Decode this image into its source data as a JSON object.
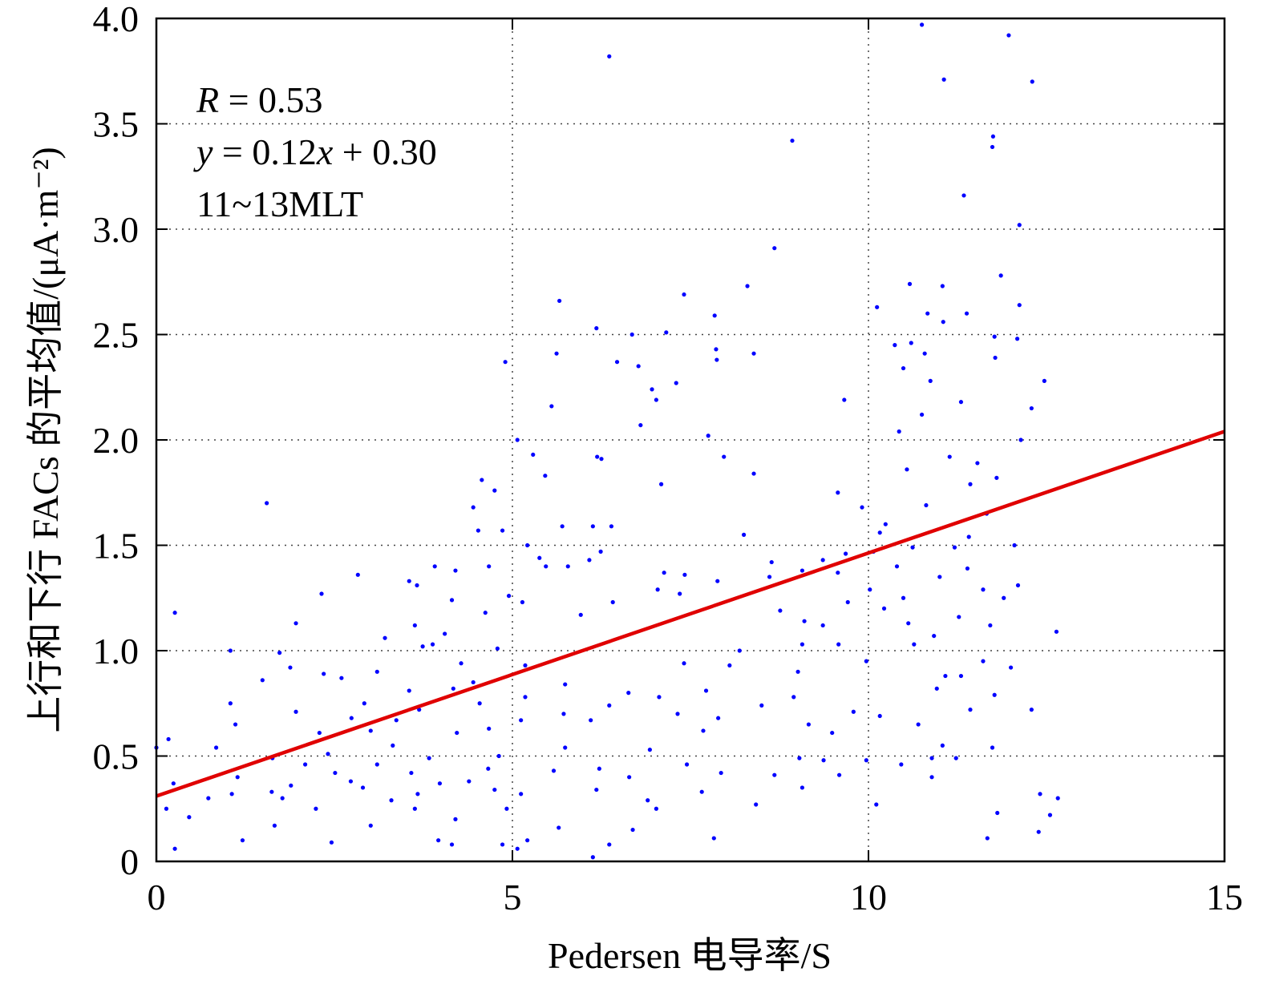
{
  "chart_data": {
    "type": "scatter",
    "xlabel": "Pedersen 电导率/S",
    "ylabel": "上行和下行 FACs 的平均值/(μA·m⁻²)",
    "annotations": [
      [
        {
          "text": "R",
          "italic": true
        },
        {
          "text": " = 0.53",
          "italic": false
        }
      ],
      [
        {
          "text": "y",
          "italic": true
        },
        {
          "text": " = 0.12",
          "italic": false
        },
        {
          "text": "x",
          "italic": true
        },
        {
          "text": " + 0.30",
          "italic": false
        }
      ],
      [
        {
          "text": "11~13MLT",
          "italic": false
        }
      ]
    ],
    "color": "#0000ff",
    "x": [
      10.75,
      11.97,
      6.36,
      11.06,
      12.3,
      11.75,
      11.74,
      8.93,
      11.34,
      12.12,
      8.68,
      11.86,
      8.3,
      10.58,
      11.04,
      5.66,
      12.12,
      10.12,
      7.41,
      7.84,
      10.83,
      11.38,
      6.18,
      7.16,
      6.68,
      11.05,
      12.09,
      10.6,
      10.37,
      11.77,
      5.62,
      8.39,
      10.79,
      7.86,
      4.9,
      6.47,
      6.77,
      10.49,
      11.78,
      10.87,
      12.47,
      6.96,
      7.3,
      7.87,
      9.66,
      7.02,
      5.55,
      11.3,
      12.29,
      10.43,
      10.75,
      7.75,
      12.14,
      6.8,
      5.07,
      6.19,
      6.25,
      5.29,
      7.97,
      10.54,
      11.14,
      11.53,
      4.57,
      5.46,
      7.09,
      8.39,
      9.57,
      11.43,
      11.8,
      4.75,
      1.55,
      9.91,
      10.81,
      4.45,
      11.66,
      10.24,
      5.7,
      6.13,
      6.39,
      4.52,
      4.86,
      8.25,
      10.16,
      11.41,
      5.21,
      10.62,
      12.05,
      6.24,
      9.68,
      10.07,
      11.21,
      5.38,
      6.08,
      8.64,
      9.36,
      3.91,
      4.67,
      5.47,
      5.78,
      10.4,
      11.39,
      2.83,
      4.2,
      7.13,
      7.42,
      9.57,
      8.61,
      3.55,
      3.66,
      7.04,
      7.88,
      11.0,
      12.1,
      11.61,
      2.32,
      7.35,
      10.02,
      9.07,
      4.95,
      4.15,
      5.14,
      6.41,
      10.49,
      11.9,
      9.71,
      10.22,
      0.26,
      4.62,
      5.96,
      8.76,
      9.1,
      9.36,
      1.96,
      3.63,
      10.56,
      11.27,
      12.64,
      4.05,
      10.92,
      11.71,
      3.21,
      9.07,
      10.64,
      1.04,
      1.73,
      3.74,
      3.88,
      4.79,
      8.19,
      9.58,
      9.97,
      11.61,
      4.28,
      5.18,
      7.41,
      8.05,
      1.88,
      3.1,
      9.01,
      12.0,
      2.35,
      11.08,
      11.3,
      1.49,
      2.6,
      4.45,
      5.74,
      6.63,
      7.72,
      10.96,
      3.55,
      4.17,
      5.18,
      7.06,
      8.95,
      11.77,
      1.04,
      2.92,
      4.54,
      6.36,
      8.5,
      11.43,
      12.29,
      1.96,
      3.69,
      7.32,
      5.72,
      9.79,
      2.74,
      3.37,
      5.12,
      7.89,
      10.16,
      1.11,
      6.1,
      9.16,
      10.7,
      4.67,
      2.29,
      3.01,
      4.22,
      7.68,
      9.49,
      3.32,
      5.74,
      6.93,
      11.74,
      11.04,
      0.0,
      0.17,
      0.84,
      1.63,
      2.41,
      3.83,
      4.81,
      9.03,
      9.97,
      10.89,
      11.23,
      2.09,
      3.1,
      6.22,
      7.45,
      9.37,
      10.46,
      2.51,
      3.58,
      4.66,
      5.58,
      7.93,
      8.68,
      10.89,
      1.14,
      2.73,
      3.98,
      4.39,
      6.64,
      9.59,
      0.24,
      1.89,
      2.9,
      4.75,
      6.18,
      7.66,
      9.07,
      1.06,
      1.62,
      3.67,
      5.12,
      12.41,
      12.66,
      0.73,
      1.77,
      3.3,
      6.9,
      8.42,
      0.14,
      2.24,
      3.63,
      4.92,
      7.02,
      10.11,
      0.46,
      12.55,
      11.81,
      4.2,
      3.01,
      1.66,
      5.65,
      6.69,
      12.39,
      1.21,
      2.46,
      3.96,
      5.21,
      7.83,
      11.67,
      0.26,
      4.15,
      4.86,
      6.36,
      5.07,
      6.13
    ],
    "values": [
      3.97,
      3.92,
      3.82,
      3.71,
      3.7,
      3.44,
      3.39,
      3.42,
      3.16,
      3.02,
      2.91,
      2.78,
      2.73,
      2.74,
      2.73,
      2.66,
      2.64,
      2.63,
      2.69,
      2.59,
      2.6,
      2.6,
      2.53,
      2.51,
      2.5,
      2.56,
      2.48,
      2.46,
      2.45,
      2.49,
      2.41,
      2.41,
      2.41,
      2.43,
      2.37,
      2.37,
      2.35,
      2.34,
      2.39,
      2.28,
      2.28,
      2.24,
      2.27,
      2.38,
      2.19,
      2.19,
      2.16,
      2.18,
      2.15,
      2.04,
      2.12,
      2.02,
      2.0,
      2.07,
      2.0,
      1.92,
      1.91,
      1.93,
      1.92,
      1.86,
      1.92,
      1.89,
      1.81,
      1.83,
      1.79,
      1.84,
      1.75,
      1.79,
      1.82,
      1.76,
      1.7,
      1.68,
      1.69,
      1.68,
      1.65,
      1.6,
      1.59,
      1.59,
      1.59,
      1.57,
      1.57,
      1.55,
      1.56,
      1.54,
      1.5,
      1.49,
      1.5,
      1.47,
      1.46,
      1.47,
      1.49,
      1.44,
      1.43,
      1.42,
      1.43,
      1.4,
      1.4,
      1.4,
      1.4,
      1.4,
      1.39,
      1.36,
      1.38,
      1.37,
      1.36,
      1.37,
      1.35,
      1.33,
      1.31,
      1.29,
      1.33,
      1.35,
      1.31,
      1.29,
      1.27,
      1.27,
      1.29,
      1.38,
      1.26,
      1.24,
      1.23,
      1.23,
      1.25,
      1.25,
      1.23,
      1.2,
      1.18,
      1.18,
      1.17,
      1.19,
      1.14,
      1.12,
      1.13,
      1.12,
      1.13,
      1.16,
      1.09,
      1.08,
      1.07,
      1.12,
      1.06,
      1.03,
      1.03,
      1.0,
      0.99,
      1.02,
      1.03,
      1.01,
      1.0,
      1.03,
      0.95,
      0.95,
      0.94,
      0.93,
      0.94,
      0.93,
      0.92,
      0.9,
      0.9,
      0.92,
      0.89,
      0.88,
      0.88,
      0.86,
      0.87,
      0.85,
      0.84,
      0.8,
      0.81,
      0.82,
      0.81,
      0.82,
      0.78,
      0.78,
      0.78,
      0.79,
      0.75,
      0.75,
      0.75,
      0.74,
      0.74,
      0.72,
      0.72,
      0.71,
      0.72,
      0.7,
      0.7,
      0.71,
      0.68,
      0.67,
      0.67,
      0.68,
      0.69,
      0.65,
      0.67,
      0.65,
      0.65,
      0.63,
      0.61,
      0.62,
      0.61,
      0.62,
      0.61,
      0.55,
      0.54,
      0.53,
      0.54,
      0.55,
      0.54,
      0.58,
      0.54,
      0.49,
      0.51,
      0.49,
      0.5,
      0.49,
      0.48,
      0.49,
      0.49,
      0.46,
      0.46,
      0.44,
      0.46,
      0.48,
      0.46,
      0.42,
      0.42,
      0.44,
      0.43,
      0.42,
      0.41,
      0.4,
      0.4,
      0.38,
      0.37,
      0.38,
      0.4,
      0.41,
      0.37,
      0.36,
      0.35,
      0.34,
      0.34,
      0.33,
      0.35,
      0.32,
      0.33,
      0.32,
      0.32,
      0.32,
      0.3,
      0.3,
      0.3,
      0.29,
      0.29,
      0.27,
      0.25,
      0.25,
      0.25,
      0.25,
      0.25,
      0.27,
      0.21,
      0.22,
      0.23,
      0.2,
      0.17,
      0.17,
      0.16,
      0.15,
      0.14,
      0.1,
      0.09,
      0.1,
      0.1,
      0.11,
      0.11,
      0.06,
      0.08,
      0.08,
      0.08,
      0.06,
      0.02
    ],
    "fit_line": {
      "x": [
        0,
        15
      ],
      "values": [
        0.31,
        2.04
      ],
      "color": "#e00000"
    },
    "xlim": [
      0,
      15
    ],
    "xticks": [
      0,
      5,
      10,
      15
    ],
    "ylim": [
      0,
      4
    ],
    "yticks": [
      0,
      0.5,
      {
        "value": 1,
        "label": "1.0"
      },
      1.5,
      {
        "value": 2,
        "label": "2.0"
      },
      2.5,
      {
        "value": 3,
        "label": "3.0"
      },
      3.5,
      {
        "value": 4,
        "label": "4.0"
      }
    ],
    "grid": true
  }
}
